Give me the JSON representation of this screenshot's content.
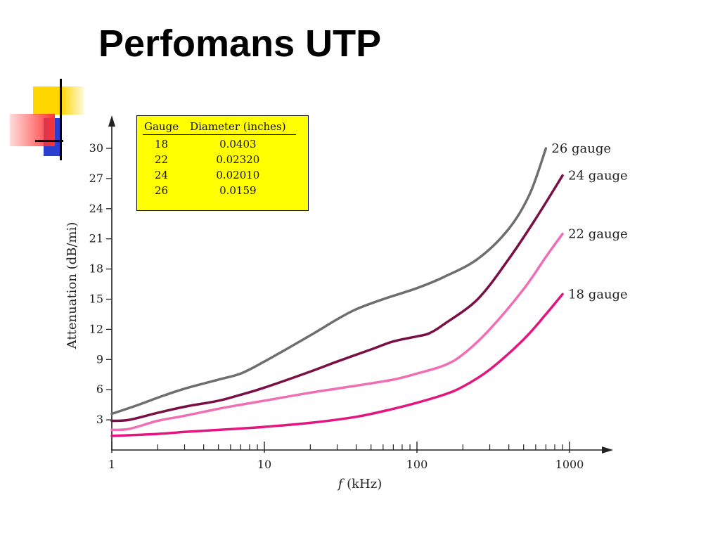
{
  "slide": {
    "title": "Perfomans UTP"
  },
  "table": {
    "headers": [
      "Gauge",
      "Diameter (inches)"
    ],
    "rows": [
      [
        "18",
        "0.0403"
      ],
      [
        "22",
        "0.02320"
      ],
      [
        "24",
        "0.02010"
      ],
      [
        "26",
        "0.0159"
      ]
    ]
  },
  "colors": {
    "deco_yellow": "#ffd700",
    "deco_red": "#ff3333",
    "deco_blue": "#2a3fcf",
    "table_bg": "#ffff00"
  },
  "chart_data": {
    "type": "line",
    "xlabel_italic": "f",
    "xlabel": "(kHz)",
    "ylabel": "Attenuation (dB/mi)",
    "x_scale": "log",
    "xlim": [
      1,
      1000
    ],
    "ylim": [
      0,
      32
    ],
    "x_ticks": [
      1,
      10,
      100,
      1000
    ],
    "x_tick_labels": [
      "1",
      "10",
      "100",
      "1000"
    ],
    "y_ticks": [
      3,
      6,
      9,
      12,
      15,
      18,
      21,
      24,
      27,
      30
    ],
    "y_tick_labels": [
      "3",
      "6",
      "9",
      "12",
      "15",
      "18",
      "21",
      "24",
      "27",
      "30"
    ],
    "grid": false,
    "series": [
      {
        "name": "26 gauge",
        "color": "#6e6e6e",
        "points": [
          [
            1,
            3.6
          ],
          [
            1.5,
            4.5
          ],
          [
            2,
            5.2
          ],
          [
            3,
            6.1
          ],
          [
            5,
            7
          ],
          [
            7,
            7.6
          ],
          [
            10,
            8.8
          ],
          [
            20,
            11.4
          ],
          [
            30,
            13
          ],
          [
            40,
            14
          ],
          [
            60,
            15
          ],
          [
            100,
            16.1
          ],
          [
            150,
            17.2
          ],
          [
            250,
            19
          ],
          [
            400,
            22
          ],
          [
            550,
            25.5
          ],
          [
            700,
            30
          ]
        ]
      },
      {
        "name": "24 gauge",
        "color": "#7a0f45",
        "points": [
          [
            1,
            2.9
          ],
          [
            1.3,
            3
          ],
          [
            2,
            3.7
          ],
          [
            3,
            4.3
          ],
          [
            5,
            4.9
          ],
          [
            7,
            5.5
          ],
          [
            10,
            6.2
          ],
          [
            20,
            7.8
          ],
          [
            30,
            8.8
          ],
          [
            50,
            10
          ],
          [
            70,
            10.8
          ],
          [
            100,
            11.3
          ],
          [
            120,
            11.6
          ],
          [
            150,
            12.5
          ],
          [
            250,
            15
          ],
          [
            400,
            19
          ],
          [
            600,
            23
          ],
          [
            900,
            27.3
          ]
        ]
      },
      {
        "name": "22 gauge",
        "color": "#f06fb4",
        "points": [
          [
            1,
            2
          ],
          [
            1.3,
            2.1
          ],
          [
            2,
            2.9
          ],
          [
            3,
            3.4
          ],
          [
            5,
            4.1
          ],
          [
            7,
            4.5
          ],
          [
            10,
            4.9
          ],
          [
            20,
            5.7
          ],
          [
            40,
            6.4
          ],
          [
            70,
            7
          ],
          [
            100,
            7.6
          ],
          [
            150,
            8.4
          ],
          [
            200,
            9.5
          ],
          [
            300,
            12
          ],
          [
            500,
            16
          ],
          [
            700,
            19.2
          ],
          [
            900,
            21.5
          ]
        ]
      },
      {
        "name": "18 gauge",
        "color": "#e5157f",
        "points": [
          [
            1,
            1.4
          ],
          [
            2,
            1.6
          ],
          [
            3,
            1.8
          ],
          [
            5,
            2
          ],
          [
            10,
            2.3
          ],
          [
            20,
            2.7
          ],
          [
            40,
            3.3
          ],
          [
            70,
            4.1
          ],
          [
            100,
            4.7
          ],
          [
            150,
            5.5
          ],
          [
            200,
            6.3
          ],
          [
            300,
            8
          ],
          [
            500,
            11
          ],
          [
            700,
            13.5
          ],
          [
            900,
            15.5
          ]
        ]
      }
    ]
  }
}
